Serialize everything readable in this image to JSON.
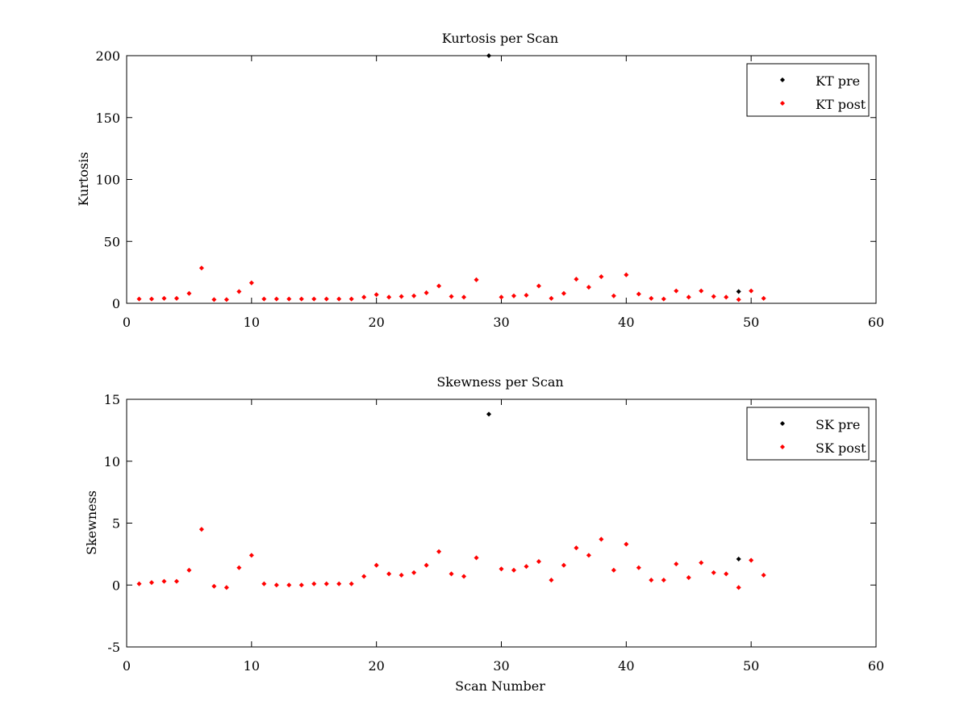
{
  "chart_data": [
    {
      "type": "scatter",
      "title": "Kurtosis per Scan",
      "xlabel": "",
      "ylabel": "Kurtosis",
      "xlim": [
        0,
        60
      ],
      "ylim": [
        0,
        200
      ],
      "xticks": [
        0,
        10,
        20,
        30,
        40,
        50,
        60
      ],
      "yticks": [
        0,
        50,
        100,
        150,
        200
      ],
      "xtick_labels": [
        "0",
        "10",
        "20",
        "30",
        "40",
        "50",
        "60"
      ],
      "ytick_labels": [
        "0",
        "50",
        "100",
        "150",
        "200"
      ],
      "grid": false,
      "legend_position": "top-right",
      "series": [
        {
          "name": "KT pre",
          "color": "#000000",
          "points": [
            [
              29,
              200
            ],
            [
              49,
              9.5
            ]
          ]
        },
        {
          "name": "KT post",
          "color": "#ff0000",
          "points": [
            [
              1,
              3.5
            ],
            [
              2,
              3.5
            ],
            [
              3,
              4
            ],
            [
              4,
              4
            ],
            [
              5,
              8
            ],
            [
              6,
              28.5
            ],
            [
              7,
              3
            ],
            [
              8,
              3
            ],
            [
              9,
              9.5
            ],
            [
              10,
              16.5
            ],
            [
              11,
              3.5
            ],
            [
              12,
              3.5
            ],
            [
              13,
              3.5
            ],
            [
              14,
              3.5
            ],
            [
              15,
              3.5
            ],
            [
              16,
              3.5
            ],
            [
              17,
              3.5
            ],
            [
              18,
              3.5
            ],
            [
              19,
              5
            ],
            [
              20,
              7
            ],
            [
              21,
              5
            ],
            [
              22,
              5.5
            ],
            [
              23,
              6
            ],
            [
              24,
              8.5
            ],
            [
              25,
              14
            ],
            [
              26,
              5.5
            ],
            [
              27,
              5
            ],
            [
              28,
              19
            ],
            [
              30,
              5
            ],
            [
              31,
              6
            ],
            [
              32,
              6.5
            ],
            [
              33,
              14
            ],
            [
              34,
              4
            ],
            [
              35,
              8
            ],
            [
              36,
              19.5
            ],
            [
              37,
              13
            ],
            [
              38,
              21.5
            ],
            [
              39,
              6
            ],
            [
              40,
              23
            ],
            [
              41,
              7.5
            ],
            [
              42,
              4
            ],
            [
              43,
              3.5
            ],
            [
              44,
              10
            ],
            [
              45,
              5
            ],
            [
              46,
              10
            ],
            [
              47,
              5.5
            ],
            [
              48,
              5
            ],
            [
              49,
              3
            ],
            [
              50,
              10
            ],
            [
              51,
              4
            ]
          ]
        }
      ]
    },
    {
      "type": "scatter",
      "title": "Skewness per Scan",
      "xlabel": "Scan Number",
      "ylabel": "Skewness",
      "xlim": [
        0,
        60
      ],
      "ylim": [
        -5,
        15
      ],
      "xticks": [
        0,
        10,
        20,
        30,
        40,
        50,
        60
      ],
      "yticks": [
        -5,
        0,
        5,
        10,
        15
      ],
      "xtick_labels": [
        "0",
        "10",
        "20",
        "30",
        "40",
        "50",
        "60"
      ],
      "ytick_labels": [
        "-5",
        "0",
        "5",
        "10",
        "15"
      ],
      "grid": false,
      "legend_position": "top-right",
      "series": [
        {
          "name": "SK pre",
          "color": "#000000",
          "points": [
            [
              29,
              13.8
            ],
            [
              49,
              2.1
            ]
          ]
        },
        {
          "name": "SK post",
          "color": "#ff0000",
          "points": [
            [
              1,
              0.1
            ],
            [
              2,
              0.2
            ],
            [
              3,
              0.3
            ],
            [
              4,
              0.3
            ],
            [
              5,
              1.2
            ],
            [
              6,
              4.5
            ],
            [
              7,
              -0.1
            ],
            [
              8,
              -0.2
            ],
            [
              9,
              1.4
            ],
            [
              10,
              2.4
            ],
            [
              11,
              0.1
            ],
            [
              12,
              0.0
            ],
            [
              13,
              0.0
            ],
            [
              14,
              0.0
            ],
            [
              15,
              0.1
            ],
            [
              16,
              0.1
            ],
            [
              17,
              0.1
            ],
            [
              18,
              0.1
            ],
            [
              19,
              0.7
            ],
            [
              20,
              1.6
            ],
            [
              21,
              0.9
            ],
            [
              22,
              0.8
            ],
            [
              23,
              1.0
            ],
            [
              24,
              1.6
            ],
            [
              25,
              2.7
            ],
            [
              26,
              0.9
            ],
            [
              27,
              0.7
            ],
            [
              28,
              2.2
            ],
            [
              30,
              1.3
            ],
            [
              31,
              1.2
            ],
            [
              32,
              1.5
            ],
            [
              33,
              1.9
            ],
            [
              34,
              0.4
            ],
            [
              35,
              1.6
            ],
            [
              36,
              3.0
            ],
            [
              37,
              2.4
            ],
            [
              38,
              3.7
            ],
            [
              39,
              1.2
            ],
            [
              40,
              3.3
            ],
            [
              41,
              1.4
            ],
            [
              42,
              0.4
            ],
            [
              43,
              0.4
            ],
            [
              44,
              1.7
            ],
            [
              45,
              0.6
            ],
            [
              46,
              1.8
            ],
            [
              47,
              1.0
            ],
            [
              48,
              0.9
            ],
            [
              49,
              -0.2
            ],
            [
              50,
              2.0
            ],
            [
              51,
              0.8
            ]
          ]
        }
      ]
    }
  ]
}
